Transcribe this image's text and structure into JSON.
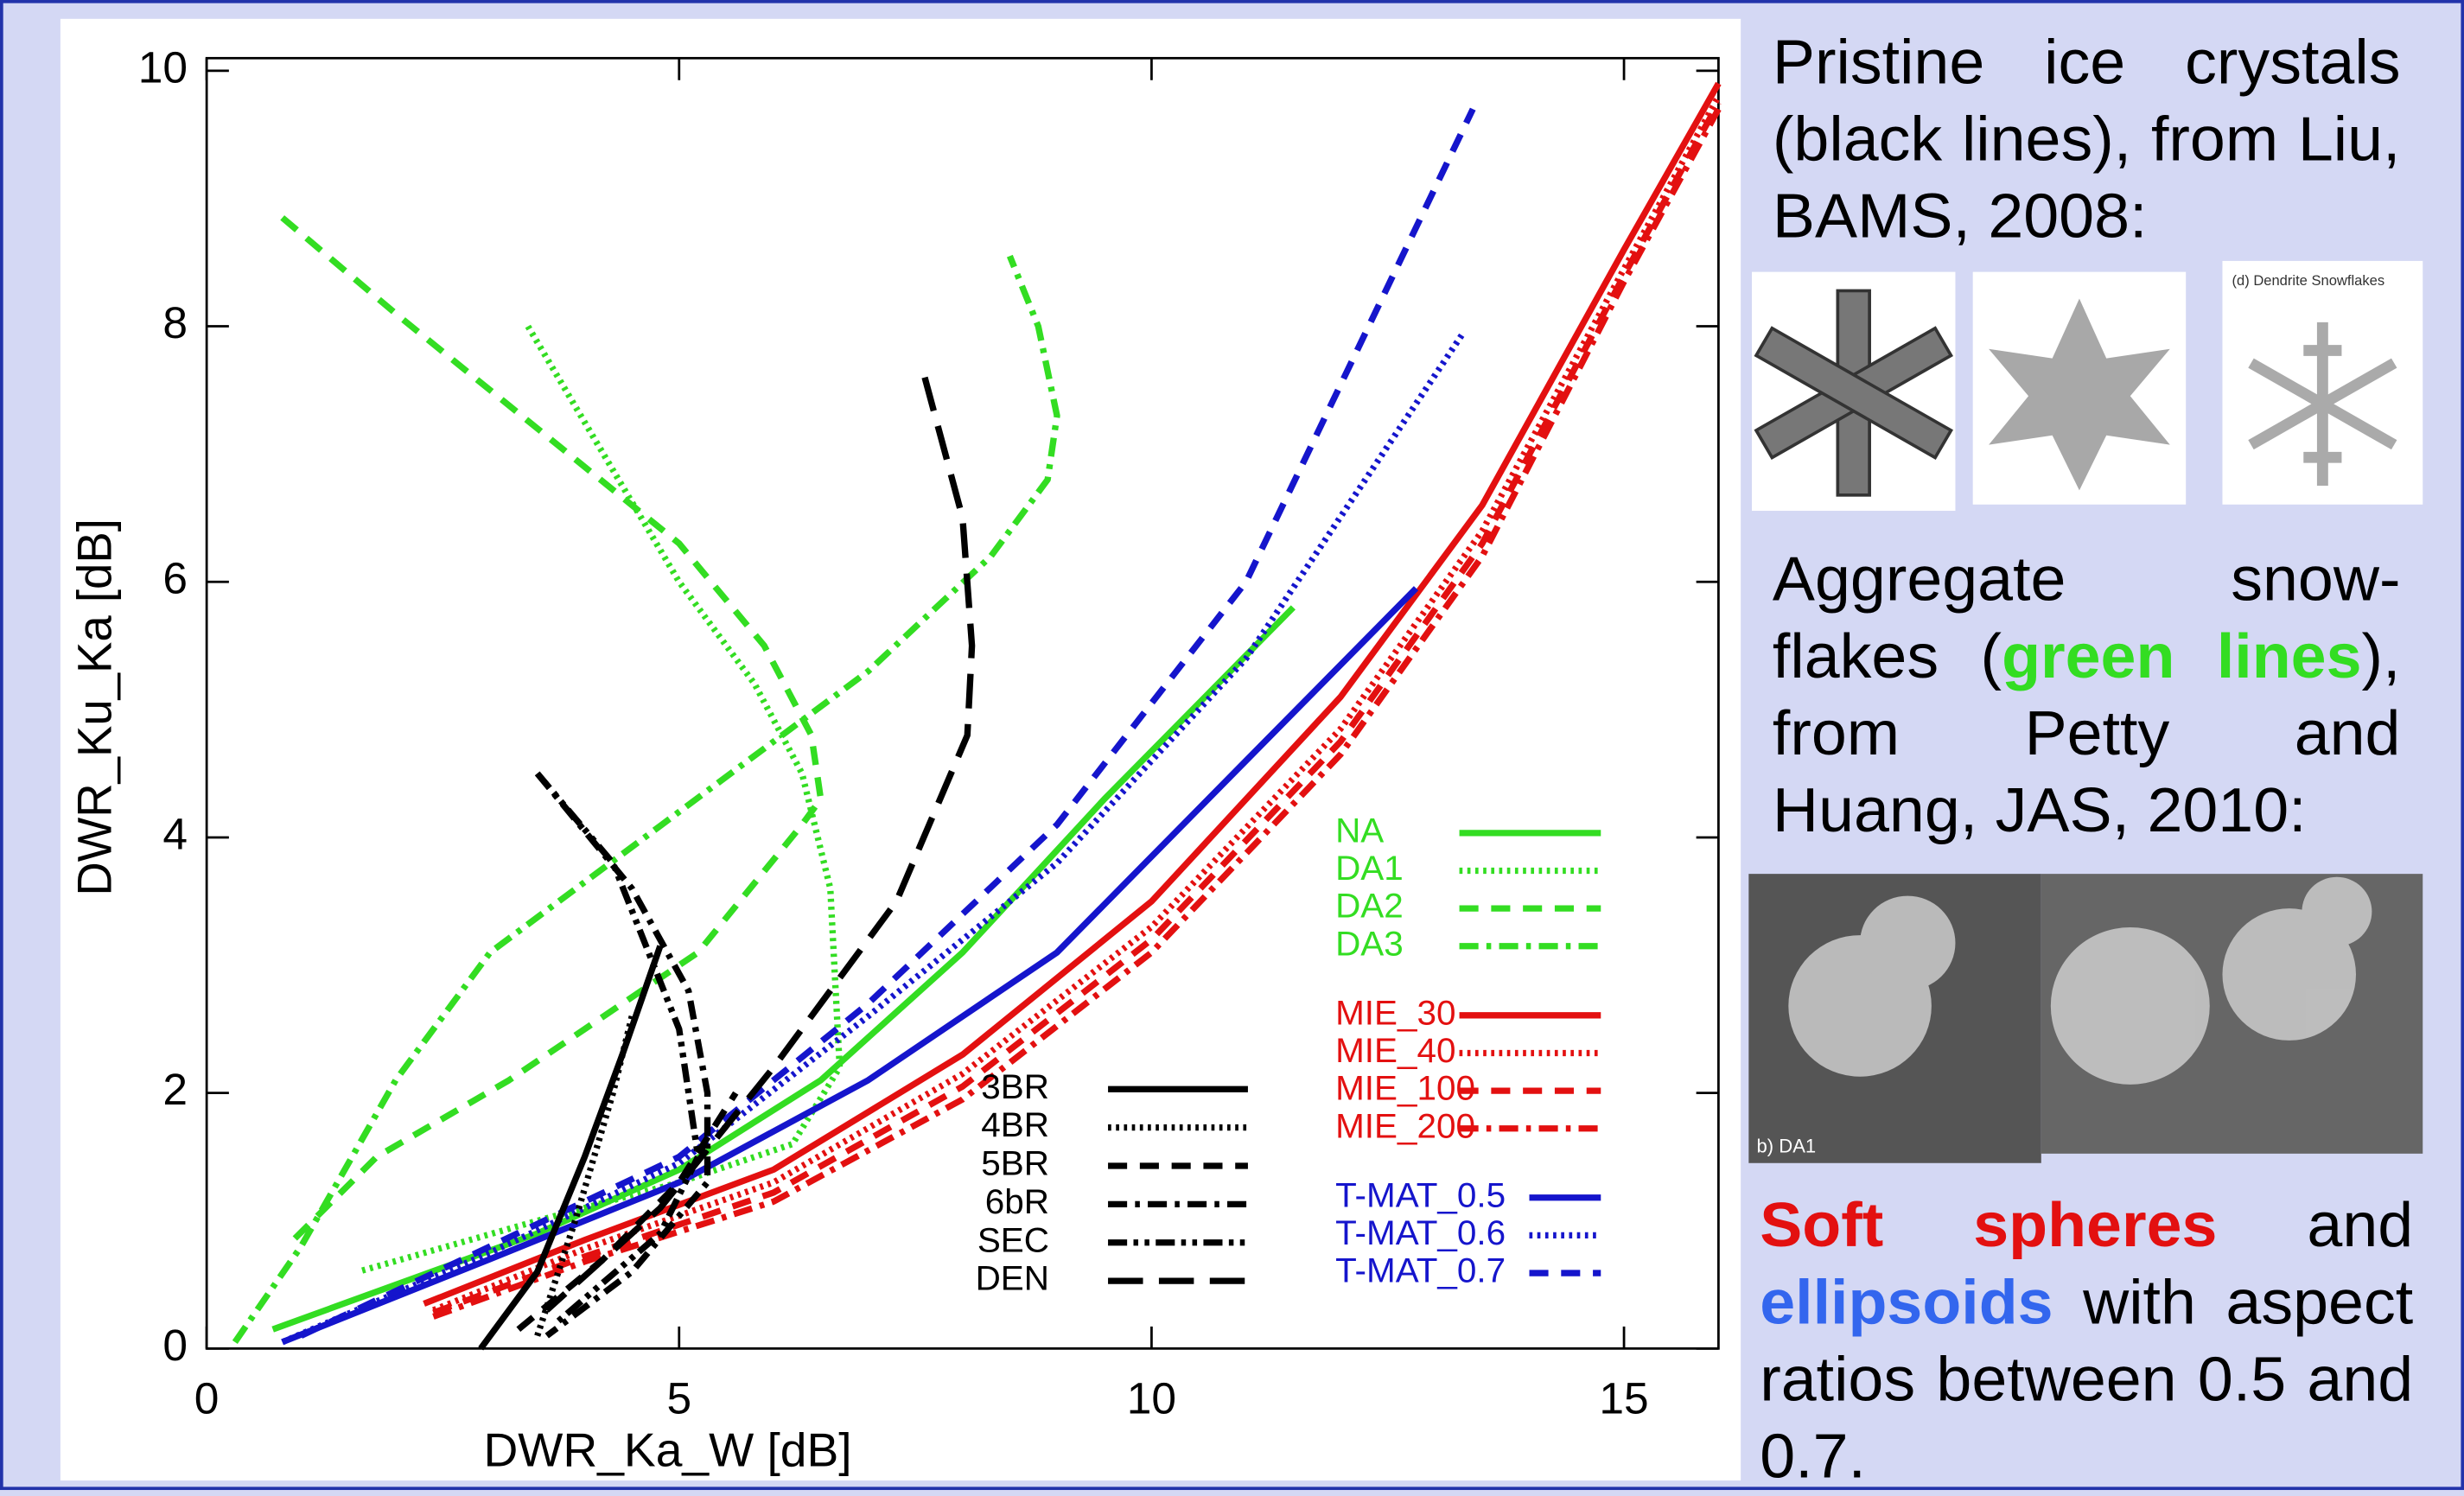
{
  "chart_data": {
    "type": "line",
    "x_label": "DWR_Ka_W [dB]",
    "y_label": "DWR_Ku_Ka [dB]",
    "xlim": [
      0,
      16
    ],
    "ylim": [
      0,
      10
    ],
    "xticks": [
      0,
      5,
      10,
      15
    ],
    "yticks": [
      0,
      2,
      4,
      6,
      8,
      10
    ],
    "series": [
      {
        "name": "NA",
        "color": "#33dd22",
        "style": "solid",
        "x": [
          0.7,
          2,
          3.5,
          5,
          6.5,
          8,
          9.5,
          11.5
        ],
        "y": [
          0.15,
          0.5,
          0.9,
          1.4,
          2.1,
          3.1,
          4.3,
          5.8
        ]
      },
      {
        "name": "DA1",
        "color": "#33dd22",
        "style": "dotted",
        "x": [
          3.4,
          4.2,
          5,
          5.8,
          6.3,
          6.6,
          6.7,
          6.2,
          5,
          3.5,
          1.6
        ],
        "y": [
          8,
          7,
          6,
          5.2,
          4.5,
          3.6,
          2.2,
          1.6,
          1.3,
          1,
          0.6
        ]
      },
      {
        "name": "DA2",
        "color": "#33dd22",
        "style": "dashed",
        "x": [
          0.8,
          2,
          3.5,
          5,
          5.9,
          6.4,
          6.5,
          6.3,
          5.2,
          3.2,
          1.8,
          0.85
        ],
        "y": [
          8.85,
          8.1,
          7.2,
          6.3,
          5.5,
          4.8,
          4.3,
          4.1,
          3.1,
          2.1,
          1.5,
          0.8
        ]
      },
      {
        "name": "DA3",
        "color": "#33dd22",
        "style": "dashdot",
        "x": [
          0.3,
          1,
          2,
          3,
          5,
          7,
          8.3,
          8.9,
          9,
          8.8,
          8.5
        ],
        "y": [
          0.05,
          0.8,
          2.1,
          3.1,
          4.2,
          5.3,
          6.2,
          6.8,
          7.3,
          8,
          8.55
        ]
      },
      {
        "name": "MIE_30",
        "color": "#e31010",
        "style": "solid",
        "x": [
          2.3,
          4,
          6,
          8,
          10,
          12,
          13.5,
          15,
          16
        ],
        "y": [
          0.35,
          0.85,
          1.4,
          2.3,
          3.5,
          5.1,
          6.6,
          8.6,
          9.9
        ]
      },
      {
        "name": "MIE_40",
        "color": "#e31010",
        "style": "dotted",
        "x": [
          2.4,
          4,
          6,
          8,
          10,
          12,
          13.5,
          15,
          16
        ],
        "y": [
          0.3,
          0.78,
          1.3,
          2.15,
          3.3,
          4.85,
          6.4,
          8.45,
          9.8
        ]
      },
      {
        "name": "MIE_100",
        "color": "#e31010",
        "style": "dashed",
        "x": [
          2.4,
          4,
          6,
          8,
          10,
          12,
          13.5,
          15,
          16
        ],
        "y": [
          0.28,
          0.72,
          1.22,
          2.05,
          3.2,
          4.75,
          6.3,
          8.4,
          9.75
        ]
      },
      {
        "name": "MIE_200",
        "color": "#e31010",
        "style": "dashdot",
        "x": [
          2.4,
          4,
          6,
          8,
          10,
          12,
          13.5,
          15,
          16
        ],
        "y": [
          0.25,
          0.68,
          1.15,
          1.95,
          3.1,
          4.65,
          6.2,
          8.35,
          9.7
        ]
      },
      {
        "name": "T-MAT_0.5",
        "color": "#1515cc",
        "style": "solid",
        "x": [
          0.8,
          3,
          5,
          7,
          9,
          11,
          12.8
        ],
        "y": [
          0.05,
          0.7,
          1.3,
          2.1,
          3.1,
          4.6,
          5.95
        ]
      },
      {
        "name": "T-MAT_0.6",
        "color": "#1515cc",
        "style": "dotted",
        "x": [
          0.8,
          3,
          5,
          7,
          9,
          11,
          13.3
        ],
        "y": [
          0.05,
          0.75,
          1.45,
          2.6,
          3.8,
          5.4,
          7.95
        ]
      },
      {
        "name": "T-MAT_0.7",
        "color": "#1515cc",
        "style": "dashed",
        "x": [
          1,
          3,
          5,
          7,
          9,
          11,
          13.4
        ],
        "y": [
          0.1,
          0.8,
          1.5,
          2.7,
          4.1,
          6,
          9.7
        ]
      },
      {
        "name": "3BR",
        "color": "#000000",
        "style": "solid",
        "x": [
          2.9,
          3.5,
          4,
          4.4,
          4.8
        ],
        "y": [
          0,
          0.6,
          1.5,
          2.3,
          3.15
        ]
      },
      {
        "name": "4BR",
        "color": "#000000",
        "style": "dotted",
        "x": [
          3.5,
          3.9,
          4.3,
          4.5
        ],
        "y": [
          0.1,
          1,
          2,
          2.6
        ]
      },
      {
        "name": "5BR",
        "color": "#000000",
        "style": "dashed",
        "x": [
          3.3,
          4.2,
          5,
          5.6
        ],
        "y": [
          0.15,
          0.7,
          1.3,
          2
        ]
      },
      {
        "name": "6bR",
        "color": "#000000",
        "style": "dashdot",
        "x": [
          3.5,
          4.5,
          5.1,
          5.3,
          5.3,
          4.5,
          3.6
        ],
        "y": [
          4.5,
          3.6,
          2.8,
          2,
          1.3,
          0.6,
          0.1
        ]
      },
      {
        "name": "SEC",
        "color": "#000000",
        "style": "dashdotdot",
        "x": [
          3.5,
          4.3,
          5,
          5.2,
          4.8,
          3.7
        ],
        "y": [
          4.5,
          3.8,
          2.5,
          1.5,
          0.9,
          0.2
        ]
      },
      {
        "name": "DEN",
        "color": "#000000",
        "style": "longdash",
        "x": [
          7.6,
          8,
          8.1,
          8.05,
          7.3,
          6,
          4.8,
          3.6
        ],
        "y": [
          7.6,
          6.5,
          5.5,
          4.8,
          3.5,
          2.2,
          1.1,
          0.3
        ]
      }
    ]
  },
  "side_panel": {
    "paragraphs": [
      [
        "Pristine ice crystals (black lines), from Liu, BAMS, 2008:"
      ],
      [
        "Aggregate snow-flakes (",
        "green lines",
        "), from Petty and Huang, JAS, 2010:"
      ],
      [
        "Soft spheres",
        " and ",
        "ellipsoids",
        " with aspect ratios between 0.5 and 0.7."
      ]
    ],
    "image_captions": [
      "(d) Dendrite Snowflakes",
      "b) DA1"
    ]
  }
}
